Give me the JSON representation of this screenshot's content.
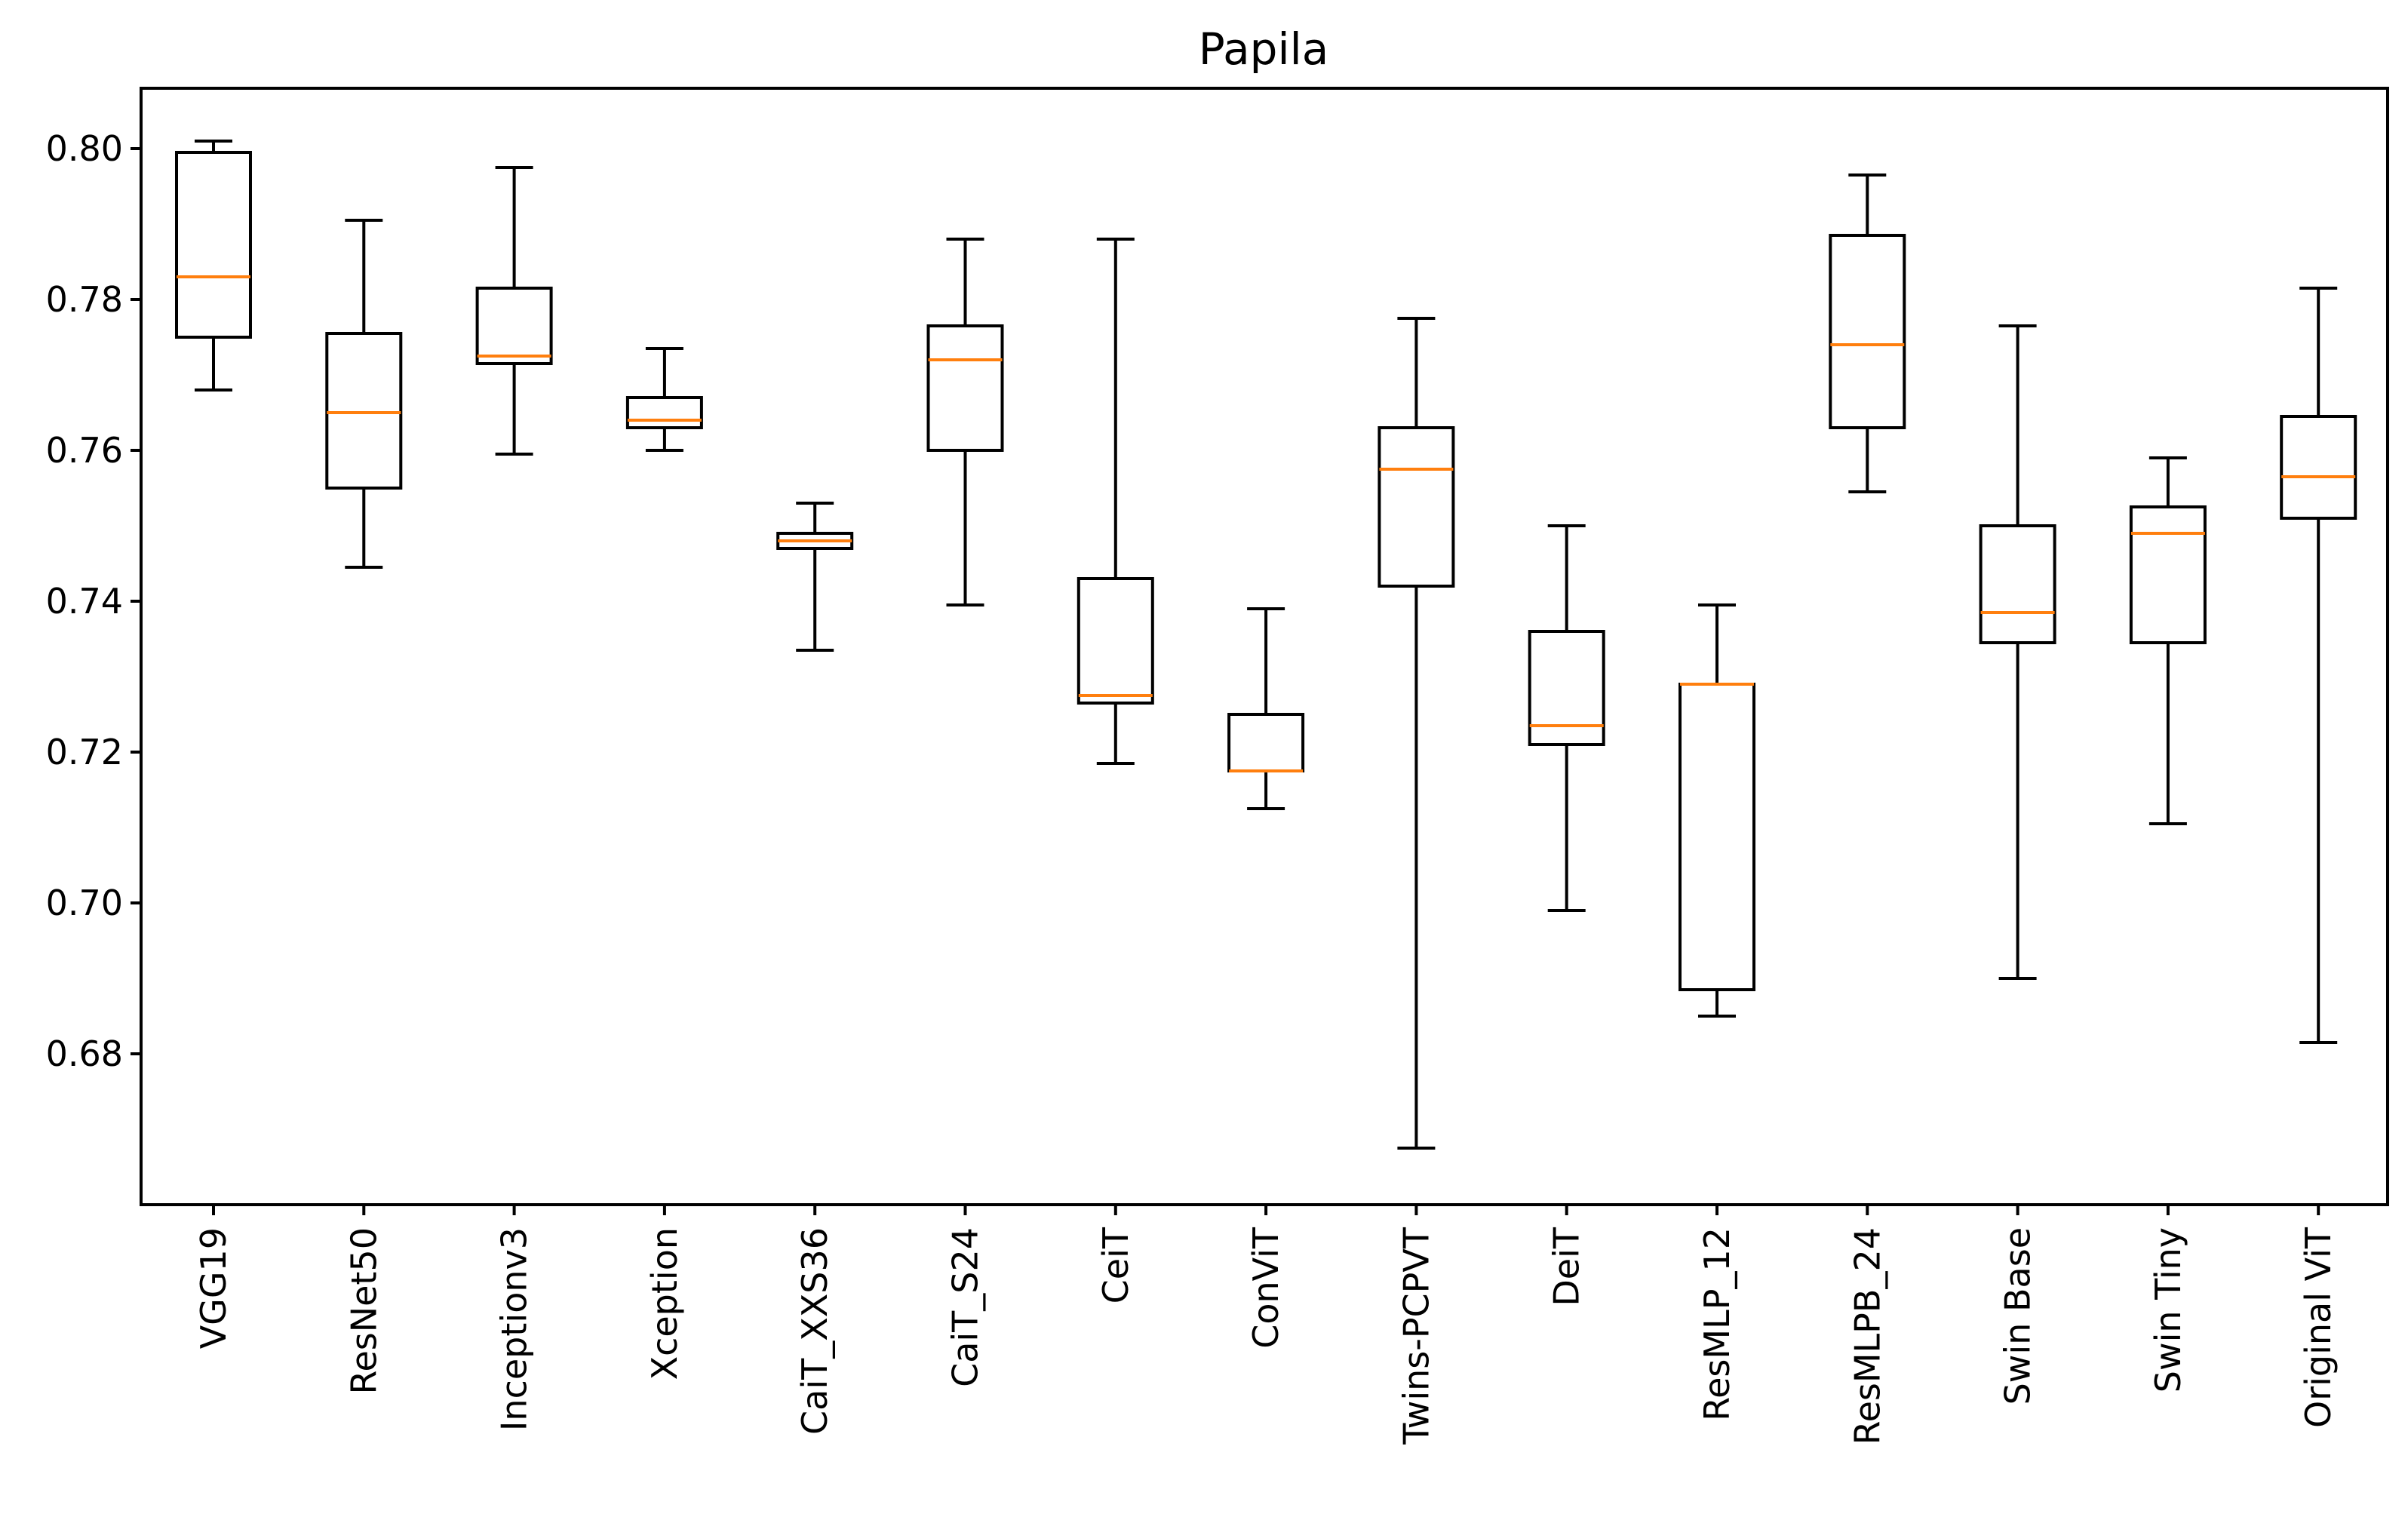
{
  "chart_data": {
    "type": "boxplot",
    "title": "Papila",
    "xlabel": "",
    "ylabel": "",
    "ylim": [
      0.66,
      0.808
    ],
    "yticks": [
      0.68,
      0.7,
      0.72,
      0.74,
      0.76,
      0.78,
      0.8
    ],
    "ytick_labels": [
      "0.68",
      "0.70",
      "0.72",
      "0.74",
      "0.76",
      "0.78",
      "0.80"
    ],
    "colors": {
      "box": "#000000",
      "median": "#ff7f0e"
    },
    "categories": [
      "VGG19",
      "ResNet50",
      "Inceptionv3",
      "Xception",
      "CaiT_XXS36",
      "CaiT_S24",
      "CeiT",
      "ConViT",
      "Twins-PCPVT",
      "DeiT",
      "ResMLP_12",
      "ResMLPB_24",
      "Swin Base",
      "Swin Tiny",
      "Original ViT"
    ],
    "boxes": [
      {
        "label": "VGG19",
        "whislo": 0.768,
        "q1": 0.775,
        "med": 0.783,
        "q3": 0.7995,
        "whishi": 0.801
      },
      {
        "label": "ResNet50",
        "whislo": 0.7445,
        "q1": 0.755,
        "med": 0.765,
        "q3": 0.7755,
        "whishi": 0.7905
      },
      {
        "label": "Inceptionv3",
        "whislo": 0.7595,
        "q1": 0.7715,
        "med": 0.7725,
        "q3": 0.7815,
        "whishi": 0.7975
      },
      {
        "label": "Xception",
        "whislo": 0.76,
        "q1": 0.763,
        "med": 0.764,
        "q3": 0.767,
        "whishi": 0.7735
      },
      {
        "label": "CaiT_XXS36",
        "whislo": 0.7335,
        "q1": 0.747,
        "med": 0.748,
        "q3": 0.749,
        "whishi": 0.753
      },
      {
        "label": "CaiT_S24",
        "whislo": 0.7395,
        "q1": 0.76,
        "med": 0.772,
        "q3": 0.7765,
        "whishi": 0.788
      },
      {
        "label": "CeiT",
        "whislo": 0.7185,
        "q1": 0.7265,
        "med": 0.7275,
        "q3": 0.743,
        "whishi": 0.788
      },
      {
        "label": "ConViT",
        "whislo": 0.7125,
        "q1": 0.7175,
        "med": 0.7175,
        "q3": 0.725,
        "whishi": 0.739
      },
      {
        "label": "Twins-PCPVT",
        "whislo": 0.6675,
        "q1": 0.742,
        "med": 0.7575,
        "q3": 0.763,
        "whishi": 0.7775
      },
      {
        "label": "DeiT",
        "whislo": 0.699,
        "q1": 0.721,
        "med": 0.7235,
        "q3": 0.736,
        "whishi": 0.75
      },
      {
        "label": "ResMLP_12",
        "whislo": 0.685,
        "q1": 0.6885,
        "med": 0.729,
        "q3": 0.729,
        "whishi": 0.7395
      },
      {
        "label": "ResMLPB_24",
        "whislo": 0.7545,
        "q1": 0.763,
        "med": 0.774,
        "q3": 0.7885,
        "whishi": 0.7965
      },
      {
        "label": "Swin Base",
        "whislo": 0.69,
        "q1": 0.7345,
        "med": 0.7385,
        "q3": 0.75,
        "whishi": 0.7765
      },
      {
        "label": "Swin Tiny",
        "whislo": 0.7105,
        "q1": 0.7345,
        "med": 0.749,
        "q3": 0.7525,
        "whishi": 0.759
      },
      {
        "label": "Original ViT",
        "whislo": 0.6815,
        "q1": 0.751,
        "med": 0.7565,
        "q3": 0.7645,
        "whishi": 0.7815
      }
    ]
  }
}
